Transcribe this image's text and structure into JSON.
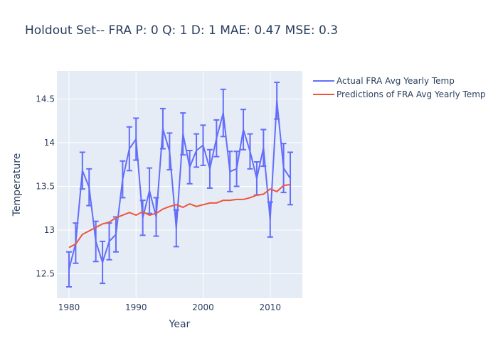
{
  "chart_data": {
    "type": "line",
    "title": "Holdout Set-- FRA P: 0 Q: 1 D: 1 MAE: 0.47 MSE: 0.3",
    "xlabel": "Year",
    "ylabel": "Temperature",
    "xlim": [
      1978.2,
      2014.8
    ],
    "ylim": [
      12.22,
      14.82
    ],
    "xticks": [
      1980,
      1990,
      2000,
      2010
    ],
    "xtick_labels": [
      "1980",
      "1990",
      "2000",
      "2010"
    ],
    "yticks": [
      12.5,
      13,
      13.5,
      14,
      14.5
    ],
    "ytick_labels": [
      "12.5",
      "13",
      "13.5",
      "14",
      "14.5"
    ],
    "grid": true,
    "legend_position": "top-right",
    "colors": {
      "actual": "#636efa",
      "predicted": "#ef553b",
      "plot_bg": "#e5ecf6",
      "text": "#2a3f5f"
    },
    "x": [
      1980,
      1981,
      1982,
      1983,
      1984,
      1985,
      1986,
      1987,
      1988,
      1989,
      1990,
      1991,
      1992,
      1993,
      1994,
      1995,
      1996,
      1997,
      1998,
      1999,
      2000,
      2001,
      2002,
      2003,
      2004,
      2005,
      2006,
      2007,
      2008,
      2009,
      2010,
      2011,
      2012,
      2013
    ],
    "series": [
      {
        "name": "Actual FRA Avg Yearly Temp",
        "values": [
          12.55,
          12.85,
          13.68,
          13.49,
          12.87,
          12.63,
          12.87,
          12.95,
          13.58,
          13.93,
          14.04,
          13.14,
          13.45,
          13.15,
          14.16,
          13.9,
          13.02,
          14.1,
          13.72,
          13.91,
          13.97,
          13.7,
          14.05,
          14.34,
          13.67,
          13.7,
          14.15,
          13.9,
          13.59,
          13.94,
          13.12,
          14.48,
          13.71,
          13.59
        ],
        "error": [
          0.2,
          0.23,
          0.21,
          0.21,
          0.23,
          0.24,
          0.21,
          0.2,
          0.21,
          0.25,
          0.24,
          0.2,
          0.26,
          0.22,
          0.23,
          0.21,
          0.21,
          0.24,
          0.19,
          0.19,
          0.23,
          0.22,
          0.21,
          0.27,
          0.23,
          0.2,
          0.23,
          0.2,
          0.19,
          0.21,
          0.2,
          0.21,
          0.28,
          0.3
        ]
      },
      {
        "name": "Predictions of FRA Avg Yearly Temp",
        "values": [
          12.8,
          12.84,
          12.95,
          12.99,
          13.03,
          13.07,
          13.09,
          13.14,
          13.17,
          13.2,
          13.17,
          13.21,
          13.17,
          13.19,
          13.24,
          13.27,
          13.29,
          13.26,
          13.3,
          13.27,
          13.29,
          13.31,
          13.31,
          13.34,
          13.34,
          13.35,
          13.35,
          13.37,
          13.4,
          13.41,
          13.47,
          13.44,
          13.51,
          13.52
        ]
      }
    ]
  }
}
